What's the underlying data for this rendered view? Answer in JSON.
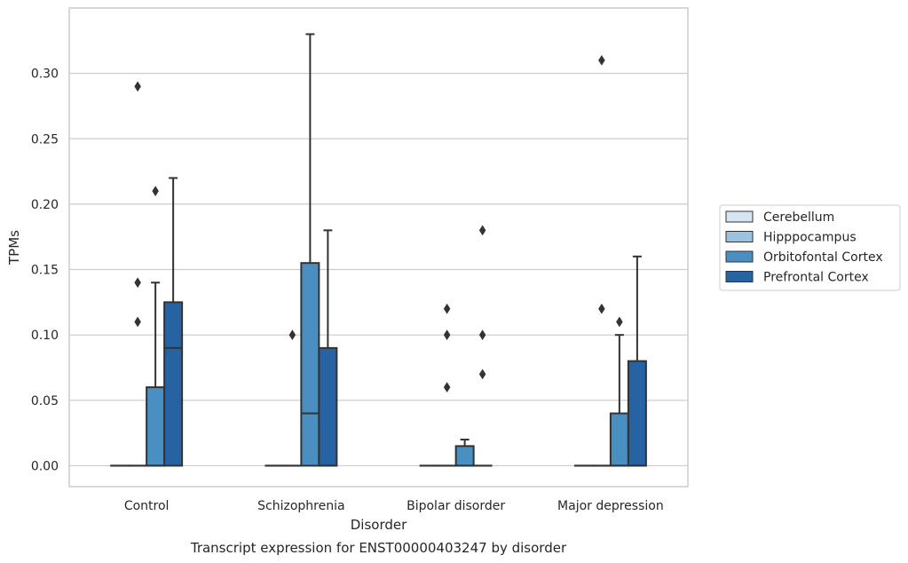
{
  "chart_data": {
    "type": "box",
    "title": "",
    "caption": "Transcript expression for ENST00000403247 by disorder",
    "xlabel": "Disorder",
    "ylabel": "TPMs",
    "ylim": [
      -0.016,
      0.35
    ],
    "yticks": [
      0.0,
      0.05,
      0.1,
      0.15,
      0.2,
      0.25,
      0.3
    ],
    "ytick_labels": [
      "0.00",
      "0.05",
      "0.10",
      "0.15",
      "0.20",
      "0.25",
      "0.30"
    ],
    "grid": true,
    "legend_position": "right",
    "categories": [
      "Control",
      "Schizophrenia",
      "Bipolar disorder",
      "Major depression"
    ],
    "series": [
      {
        "name": "Cerebellum",
        "color": "#d6e5f2",
        "boxes": [
          {
            "min": 0,
            "q1": 0,
            "median": 0,
            "q3": 0,
            "max": 0,
            "outliers": []
          },
          {
            "min": 0,
            "q1": 0,
            "median": 0,
            "q3": 0,
            "max": 0,
            "outliers": []
          },
          {
            "min": 0,
            "q1": 0,
            "median": 0,
            "q3": 0,
            "max": 0,
            "outliers": []
          },
          {
            "min": 0,
            "q1": 0,
            "median": 0,
            "q3": 0,
            "max": 0,
            "outliers": []
          }
        ]
      },
      {
        "name": "Hipppocampus",
        "color": "#99c3de",
        "boxes": [
          {
            "min": 0,
            "q1": 0,
            "median": 0,
            "q3": 0,
            "max": 0,
            "outliers": [
              0.11,
              0.14,
              0.29
            ]
          },
          {
            "min": 0,
            "q1": 0,
            "median": 0,
            "q3": 0,
            "max": 0,
            "outliers": [
              0.1
            ]
          },
          {
            "min": 0,
            "q1": 0,
            "median": 0,
            "q3": 0,
            "max": 0,
            "outliers": [
              0.06,
              0.1,
              0.12
            ]
          },
          {
            "min": 0,
            "q1": 0,
            "median": 0,
            "q3": 0,
            "max": 0,
            "outliers": [
              0.12,
              0.31
            ]
          }
        ]
      },
      {
        "name": "Orbitofontal Cortex",
        "color": "#4a8fc2",
        "boxes": [
          {
            "min": 0,
            "q1": 0,
            "median": 0,
            "q3": 0.06,
            "max": 0.14,
            "outliers": [
              0.21
            ]
          },
          {
            "min": 0,
            "q1": 0,
            "median": 0.04,
            "q3": 0.155,
            "max": 0.33,
            "outliers": []
          },
          {
            "min": 0,
            "q1": 0,
            "median": 0,
            "q3": 0.015,
            "max": 0.02,
            "outliers": []
          },
          {
            "min": 0,
            "q1": 0,
            "median": 0,
            "q3": 0.04,
            "max": 0.1,
            "outliers": [
              0.11
            ]
          }
        ]
      },
      {
        "name": "Prefrontal Cortex",
        "color": "#2763a2",
        "boxes": [
          {
            "min": 0,
            "q1": 0,
            "median": 0.09,
            "q3": 0.125,
            "max": 0.22,
            "outliers": []
          },
          {
            "min": 0,
            "q1": 0,
            "median": 0,
            "q3": 0.09,
            "max": 0.18,
            "outliers": []
          },
          {
            "min": 0,
            "q1": 0,
            "median": 0,
            "q3": 0,
            "max": 0,
            "outliers": [
              0.07,
              0.1,
              0.18
            ]
          },
          {
            "min": 0,
            "q1": 0,
            "median": 0,
            "q3": 0.08,
            "max": 0.16,
            "outliers": []
          }
        ]
      }
    ]
  },
  "colors": {
    "grid": "#cccccc",
    "frame": "#cccccc",
    "line": "#333333",
    "text": "#262626"
  }
}
